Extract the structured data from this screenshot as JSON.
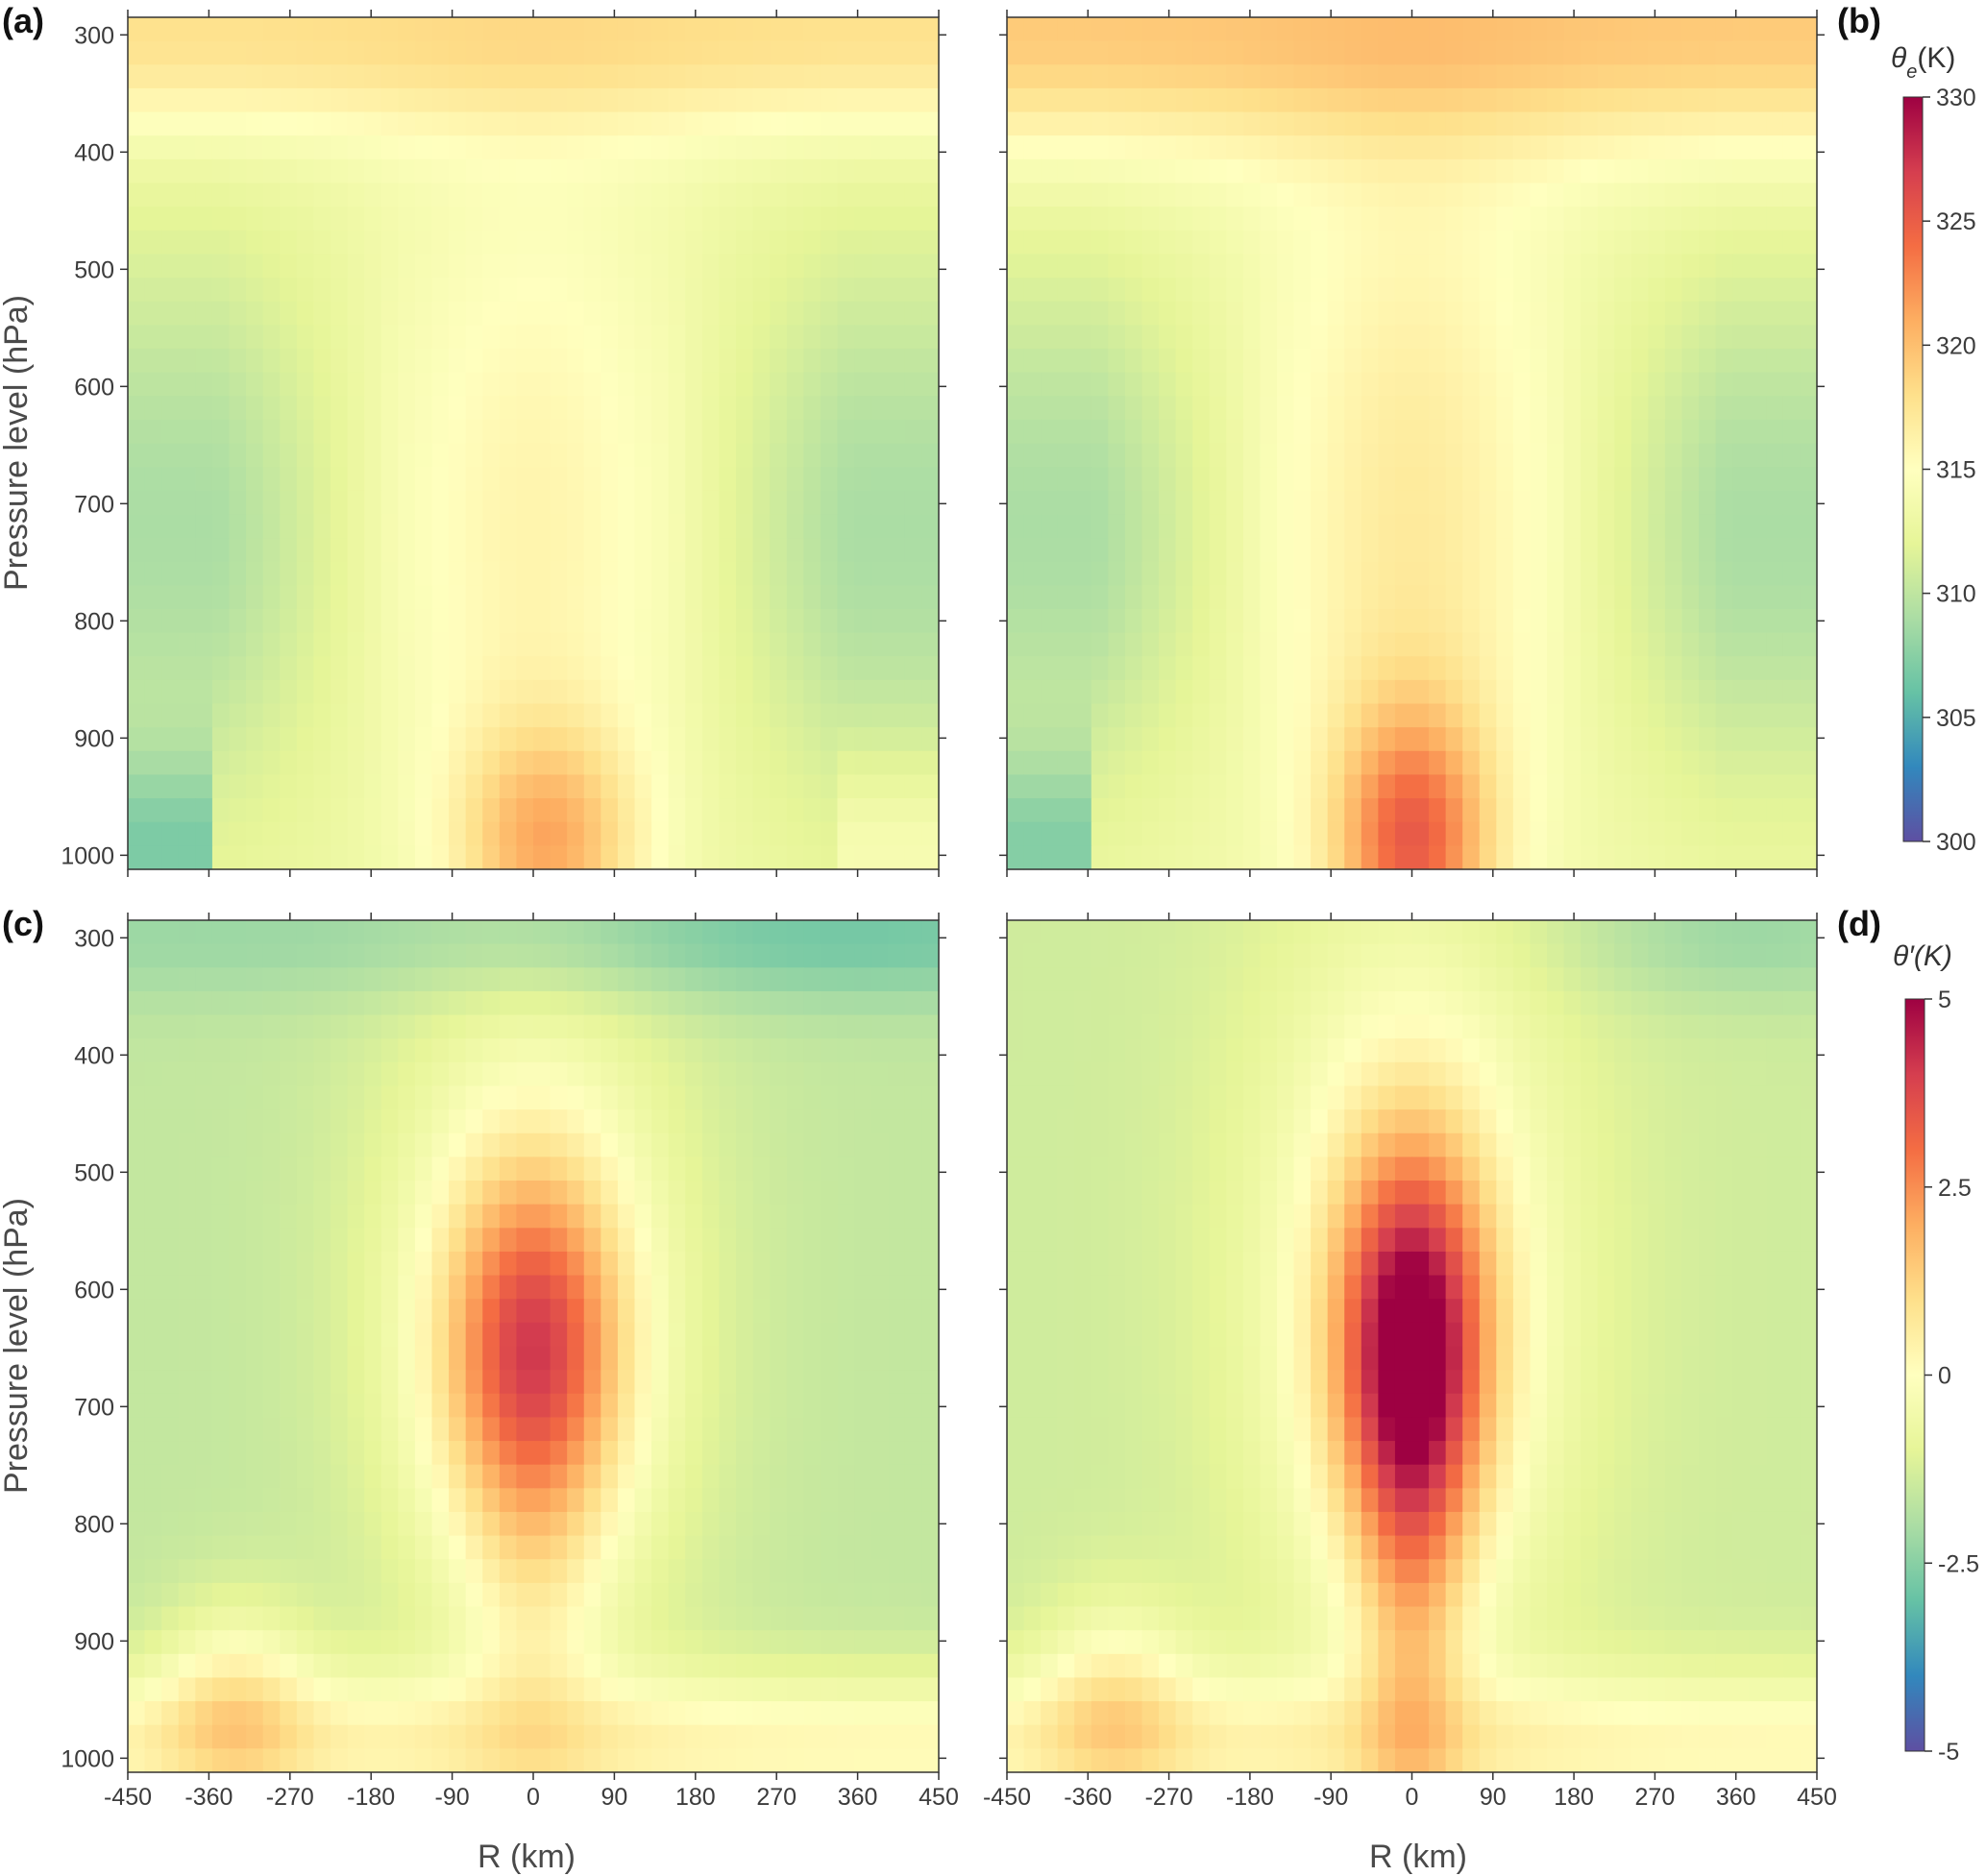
{
  "chart_data": [
    {
      "type": "heatmap",
      "panel_label": "(a)",
      "ylabel": "Pressure level (hPa)",
      "xlabel": "",
      "yticks": [
        "300",
        "400",
        "500",
        "600",
        "700",
        "800",
        "900",
        "1000"
      ],
      "xticks": [],
      "ylim": [
        1000,
        300
      ],
      "xlim": [
        -450,
        450
      ],
      "colorbar": "theta_e",
      "description_values": "equivalent potential temperature (K): warm core near surface at R=0 (~323 K), dry minima (~309 K) near 700-800 hPa at |R|>300 km, ~320 K at 300 hPa"
    },
    {
      "type": "heatmap",
      "panel_label": "(b)",
      "ylabel": "",
      "xlabel": "",
      "yticks": [],
      "xticks": [],
      "ylim": [
        1000,
        300
      ],
      "xlim": [
        -450,
        450
      ],
      "colorbar": "theta_e",
      "description_values": "equivalent potential temperature (K): surface maximum ~325 K at R=0, minima ~307 K near 750 hPa at R≈420 km"
    },
    {
      "type": "heatmap",
      "panel_label": "(c)",
      "ylabel": "Pressure level (hPa)",
      "xlabel": "R (km)",
      "yticks": [
        "300",
        "400",
        "500",
        "600",
        "700",
        "800",
        "900",
        "1000"
      ],
      "xticks": [
        "-450",
        "-360",
        "-270",
        "-180",
        "-90",
        "0",
        "90",
        "180",
        "270",
        "360",
        "450"
      ],
      "ylim": [
        1000,
        300
      ],
      "xlim": [
        -450,
        450
      ],
      "colorbar": "theta_prime",
      "description_values": "temperature anomaly (K): warm core ~2.5 K near 650 hPa at R=0, cold ~-3 K at 300 hPa"
    },
    {
      "type": "heatmap",
      "panel_label": "(d)",
      "ylabel": "",
      "xlabel": "R (km)",
      "yticks": [],
      "xticks": [
        "-450",
        "-360",
        "-270",
        "-180",
        "-90",
        "0",
        "90",
        "180",
        "270",
        "360",
        "450"
      ],
      "ylim": [
        1000,
        300
      ],
      "xlim": [
        -450,
        450
      ],
      "colorbar": "theta_prime",
      "description_values": "temperature anomaly (K): warm core ~4 K near 650 hPa at R=0"
    }
  ],
  "colorbars": {
    "theta_e": {
      "title": "θe(K)",
      "title_base": "θ",
      "title_sub": "e",
      "title_unit": "(K)",
      "range": [
        300,
        330
      ],
      "ticks": [
        "330",
        "325",
        "320",
        "315",
        "310",
        "305",
        "300"
      ]
    },
    "theta_prime": {
      "title": "θ′(K)",
      "range": [
        -5,
        5
      ],
      "ticks": [
        "5",
        "2.5",
        "0",
        "-2.5",
        "-5"
      ]
    }
  },
  "colormap": [
    "#5e4fa2",
    "#3288bd",
    "#66c2a5",
    "#abdda4",
    "#e6f598",
    "#ffffbf",
    "#fee08b",
    "#fdae61",
    "#f46d43",
    "#d53e4f",
    "#9e0142"
  ]
}
